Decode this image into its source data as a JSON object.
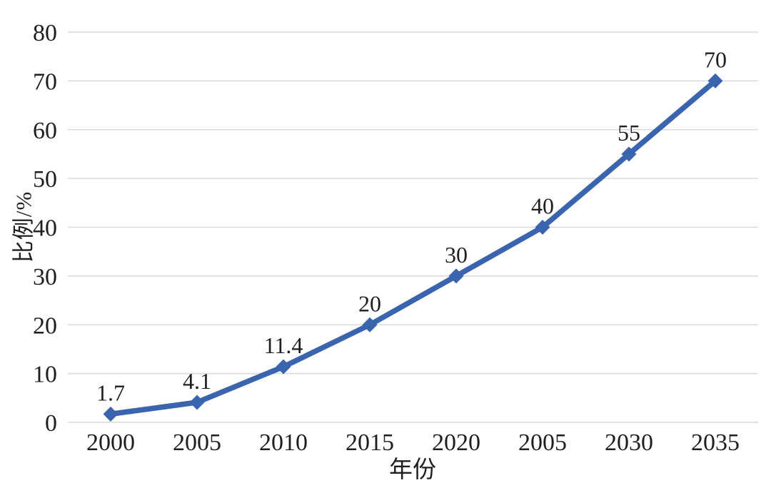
{
  "chart_data": {
    "type": "line",
    "title": "",
    "xlabel": "年份",
    "ylabel": "比例/%",
    "categories": [
      "2000",
      "2005",
      "2010",
      "2015",
      "2020",
      "2005",
      "2030",
      "2035"
    ],
    "series": [
      {
        "name": "比例",
        "values": [
          1.7,
          4.1,
          11.4,
          20,
          30,
          40,
          55,
          70
        ],
        "data_labels": [
          "1.7",
          "4.1",
          "11.4",
          "20",
          "30",
          "40",
          "55",
          "70"
        ]
      }
    ],
    "y_ticks": [
      0,
      10,
      20,
      30,
      40,
      50,
      60,
      70,
      80
    ],
    "ylim": [
      0,
      80
    ],
    "grid": "horizontal-only",
    "legend_position": "none",
    "marker_shape": "diamond",
    "colors": {
      "line": "#3A64AD",
      "grid": "#D9D9D9",
      "text": "#1F1F1F",
      "background": "#FFFFFF"
    }
  }
}
